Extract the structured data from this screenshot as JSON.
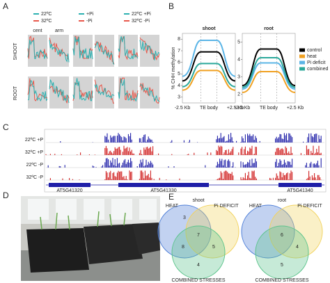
{
  "panel_labels": [
    "A",
    "B",
    "C",
    "D",
    "E"
  ],
  "panel_a": {
    "legends": [
      [
        "22ºC",
        "32ºC"
      ],
      [
        "+Pi",
        "-Pi"
      ],
      [
        "22ºC +Pi",
        "32ºC -Pi"
      ]
    ],
    "legend_colors": [
      "#2bb0b0",
      "#e8574a"
    ],
    "columns": [
      "cent",
      "arm"
    ],
    "rows": [
      "SHOOT",
      "ROOT"
    ]
  },
  "panel_b": {
    "y_label": "% CHH methylation",
    "x_labels": [
      "-2.5 Kb",
      "TE body",
      "+2.5 Kb"
    ],
    "series": [
      {
        "name": "control",
        "color": "#000000"
      },
      {
        "name": "heat",
        "color": "#f0a020"
      },
      {
        "name": "Pi deficit",
        "color": "#5ab4e6"
      },
      {
        "name": "combined",
        "color": "#2aa89a"
      }
    ],
    "charts": [
      {
        "title": "shoot",
        "ylim": [
          2.5,
          8.5
        ],
        "yticks": [
          3,
          4,
          5,
          6,
          7,
          8
        ],
        "values": [
          [
            4.4,
            6.9
          ],
          [
            3.6,
            5.3
          ],
          [
            4.8,
            7.9
          ],
          [
            3.9,
            5.9
          ]
        ]
      },
      {
        "title": "root",
        "ylim": [
          1.5,
          5.5
        ],
        "yticks": [
          2,
          3,
          4,
          5
        ],
        "values": [
          [
            2.5,
            4.6
          ],
          [
            2.1,
            3.3
          ],
          [
            2.3,
            3.8
          ],
          [
            2.4,
            4.1
          ]
        ]
      }
    ]
  },
  "panel_c": {
    "tracks": [
      "22ºC +P",
      "32ºC +P",
      "22ºC -P",
      "32ºC -P"
    ],
    "genes": [
      "AT5G41320",
      "AT5G41330",
      "AT5G41340"
    ]
  },
  "panel_e": {
    "sets": [
      "HEAT",
      "Pi DEFICIT",
      "COMBINED STRESSES"
    ],
    "venns": [
      {
        "title": "shoot",
        "counts": {
          "heat": 3,
          "all": 7,
          "heat_combined": 8,
          "pi_combined": 5,
          "combined": 4
        }
      },
      {
        "title": "root",
        "counts": {
          "all": 6,
          "pi_combined": 4,
          "combined": 5
        }
      }
    ]
  }
}
